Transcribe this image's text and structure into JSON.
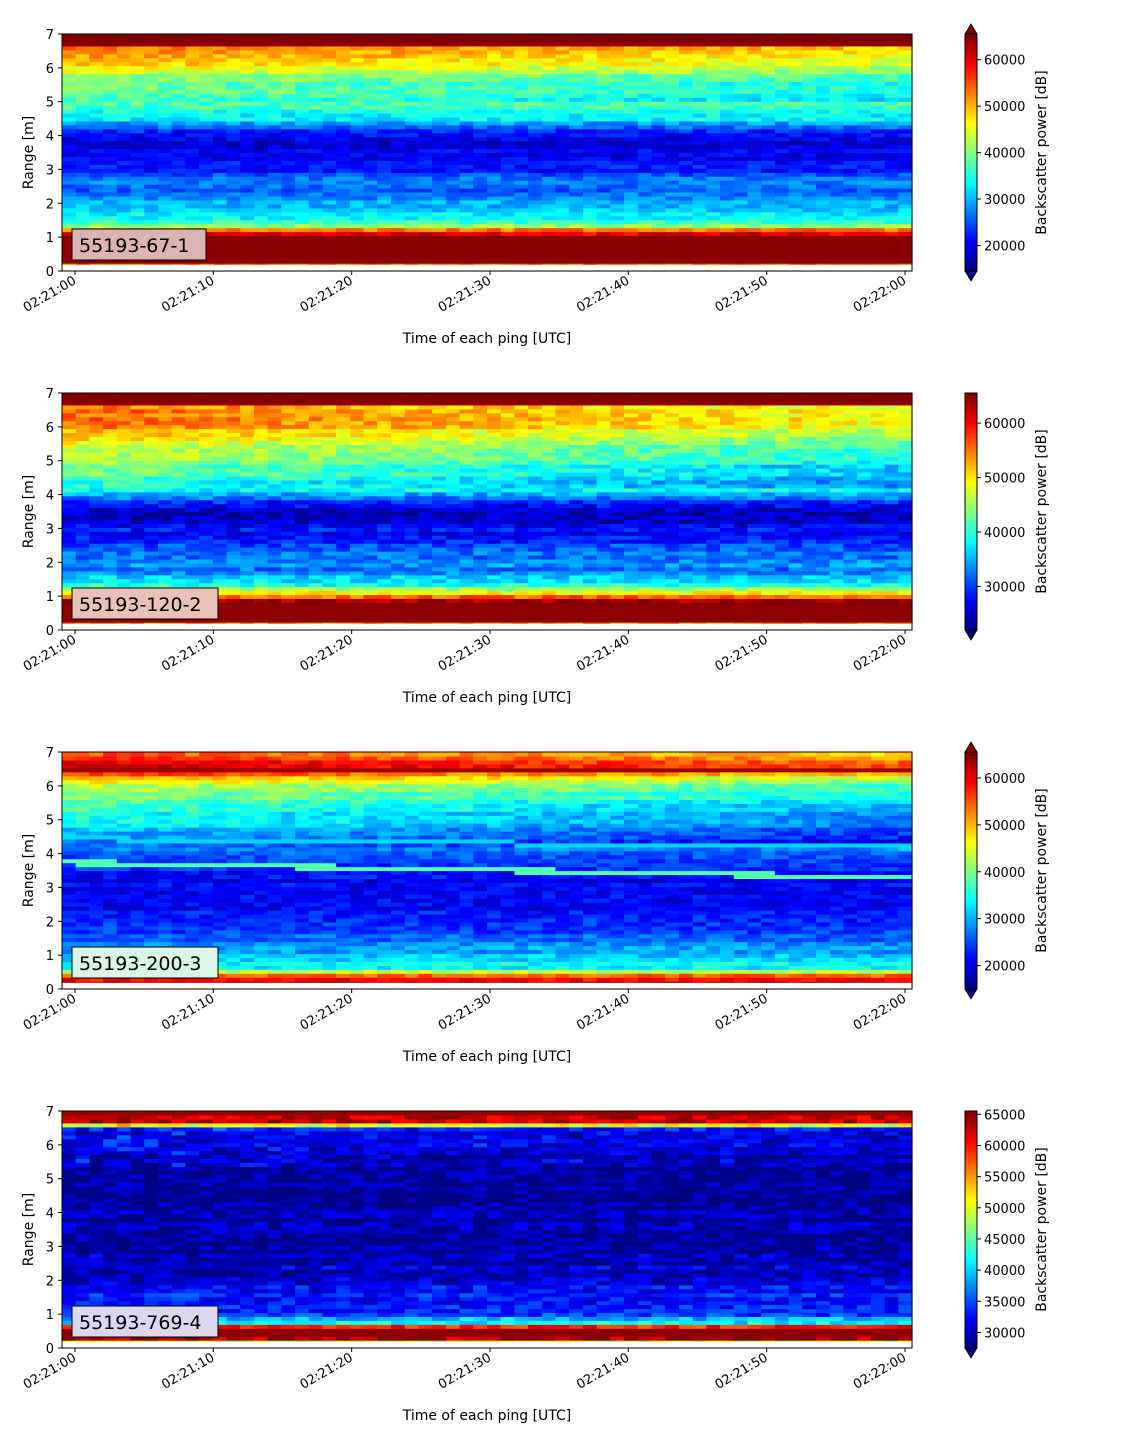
{
  "chart_data": [
    {
      "type": "heatmap",
      "tag": "55193-67-1",
      "xlabel": "Time of each ping [UTC]",
      "ylabel": "Range [m]",
      "colorbar_label": "Backscatter power [dB]",
      "colormap": "jet",
      "xlim": [
        "02:21:00",
        "02:22:00"
      ],
      "xticks": [
        "02:21:00",
        "02:21:10",
        "02:21:20",
        "02:21:30",
        "02:21:40",
        "02:21:50",
        "02:22:00"
      ],
      "ylim": [
        0,
        7
      ],
      "yticks": [
        "0",
        "1",
        "2",
        "3",
        "4",
        "5",
        "6",
        "7"
      ],
      "clim": [
        14500,
        65535
      ],
      "cticks": [
        "20000",
        "30000",
        "40000",
        "50000",
        "60000"
      ],
      "extend": "both",
      "tag_color": "#dcb3b3",
      "profile": [
        {
          "r": 0.15,
          "v": 50000
        },
        {
          "r": 0.25,
          "v": 65000
        },
        {
          "r": 1.0,
          "v": 65000
        },
        {
          "r": 1.2,
          "v": 55000
        },
        {
          "r": 1.4,
          "v": 36000
        },
        {
          "r": 2.0,
          "v": 30000
        },
        {
          "r": 2.2,
          "v": 26000
        },
        {
          "r": 2.8,
          "v": 27000
        },
        {
          "r": 3.0,
          "v": 21000
        },
        {
          "r": 3.8,
          "v": 19500
        },
        {
          "r": 4.2,
          "v": 23000
        },
        {
          "r": 4.5,
          "v": 33000
        },
        {
          "r": 5.0,
          "v": 37000
        },
        {
          "r": 5.6,
          "v": 40000
        },
        {
          "r": 6.2,
          "v": 50000
        },
        {
          "r": 6.6,
          "v": 54000
        },
        {
          "r": 6.72,
          "v": 66000
        },
        {
          "r": 7.0,
          "v": 66000
        }
      ]
    },
    {
      "type": "heatmap",
      "tag": "55193-120-2",
      "xlabel": "Time of each ping [UTC]",
      "ylabel": "Range [m]",
      "colorbar_label": "Backscatter power [dB]",
      "colormap": "jet",
      "xlim": [
        "02:21:00",
        "02:22:00"
      ],
      "xticks": [
        "02:21:00",
        "02:21:10",
        "02:21:20",
        "02:21:30",
        "02:21:40",
        "02:21:50",
        "02:22:00"
      ],
      "ylim": [
        0,
        7
      ],
      "yticks": [
        "0",
        "1",
        "2",
        "3",
        "4",
        "5",
        "6",
        "7"
      ],
      "clim": [
        22000,
        65535
      ],
      "cticks": [
        "30000",
        "40000",
        "50000",
        "60000"
      ],
      "extend": "min",
      "tag_color": "#e8c2b6",
      "profile": [
        {
          "r": 0.15,
          "v": 50000
        },
        {
          "r": 0.25,
          "v": 65000
        },
        {
          "r": 0.85,
          "v": 65000
        },
        {
          "r": 1.05,
          "v": 52000
        },
        {
          "r": 1.4,
          "v": 38000
        },
        {
          "r": 1.8,
          "v": 33000
        },
        {
          "r": 2.3,
          "v": 33000
        },
        {
          "r": 2.8,
          "v": 28000
        },
        {
          "r": 3.5,
          "v": 25000
        },
        {
          "r": 3.8,
          "v": 29000
        },
        {
          "r": 4.2,
          "v": 40000
        },
        {
          "r": 5.0,
          "v": 45000
        },
        {
          "r": 5.6,
          "v": 50000
        },
        {
          "r": 6.2,
          "v": 56000
        },
        {
          "r": 6.6,
          "v": 55000
        },
        {
          "r": 6.72,
          "v": 66000
        },
        {
          "r": 7.0,
          "v": 66000
        }
      ]
    },
    {
      "type": "heatmap",
      "tag": "55193-200-3",
      "xlabel": "Time of each ping [UTC]",
      "ylabel": "Range [m]",
      "colorbar_label": "Backscatter power [dB]",
      "colormap": "jet",
      "xlim": [
        "02:21:00",
        "02:22:00"
      ],
      "xticks": [
        "02:21:00",
        "02:21:10",
        "02:21:20",
        "02:21:30",
        "02:21:40",
        "02:21:50",
        "02:22:00"
      ],
      "ylim": [
        0,
        7
      ],
      "yticks": [
        "0",
        "1",
        "2",
        "3",
        "4",
        "5",
        "6",
        "7"
      ],
      "clim": [
        15000,
        65535
      ],
      "cticks": [
        "20000",
        "30000",
        "40000",
        "50000",
        "60000"
      ],
      "extend": "both",
      "tag_color": "#d9f5e6",
      "profile": [
        {
          "r": 0.1,
          "v": 48000
        },
        {
          "r": 0.2,
          "v": 65000
        },
        {
          "r": 0.4,
          "v": 55000
        },
        {
          "r": 0.6,
          "v": 35000
        },
        {
          "r": 1.0,
          "v": 30000
        },
        {
          "r": 1.6,
          "v": 26000
        },
        {
          "r": 2.5,
          "v": 21000
        },
        {
          "r": 3.2,
          "v": 20500
        },
        {
          "r": 3.8,
          "v": 24000
        },
        {
          "r": 4.5,
          "v": 30000
        },
        {
          "r": 5.2,
          "v": 36000
        },
        {
          "r": 6.0,
          "v": 44000
        },
        {
          "r": 6.35,
          "v": 55000
        },
        {
          "r": 6.5,
          "v": 66000
        },
        {
          "r": 6.7,
          "v": 60000
        },
        {
          "r": 7.0,
          "v": 55000
        }
      ]
    },
    {
      "type": "heatmap",
      "tag": "55193-769-4",
      "xlabel": "Time of each ping [UTC]",
      "ylabel": "Range [m]",
      "colorbar_label": "Backscatter power [dB]",
      "colormap": "jet",
      "xlim": [
        "02:21:00",
        "02:22:00"
      ],
      "xticks": [
        "02:21:00",
        "02:21:10",
        "02:21:20",
        "02:21:30",
        "02:21:40",
        "02:21:50",
        "02:22:00"
      ],
      "ylim": [
        0,
        7
      ],
      "yticks": [
        "0",
        "1",
        "2",
        "3",
        "4",
        "5",
        "6",
        "7"
      ],
      "clim": [
        27500,
        65535
      ],
      "cticks": [
        "30000",
        "35000",
        "40000",
        "45000",
        "50000",
        "55000",
        "60000",
        "65000"
      ],
      "extend": "min",
      "tag_color": "#dcd6ee",
      "profile": [
        {
          "r": 0.2,
          "v": 50000
        },
        {
          "r": 0.3,
          "v": 65000
        },
        {
          "r": 0.62,
          "v": 65000
        },
        {
          "r": 0.72,
          "v": 42000
        },
        {
          "r": 1.0,
          "v": 35000
        },
        {
          "r": 2.0,
          "v": 31000
        },
        {
          "r": 3.0,
          "v": 29000
        },
        {
          "r": 5.5,
          "v": 29000
        },
        {
          "r": 6.4,
          "v": 31000
        },
        {
          "r": 6.55,
          "v": 34000
        },
        {
          "r": 6.62,
          "v": 62000
        },
        {
          "r": 7.0,
          "v": 65000
        }
      ]
    }
  ]
}
